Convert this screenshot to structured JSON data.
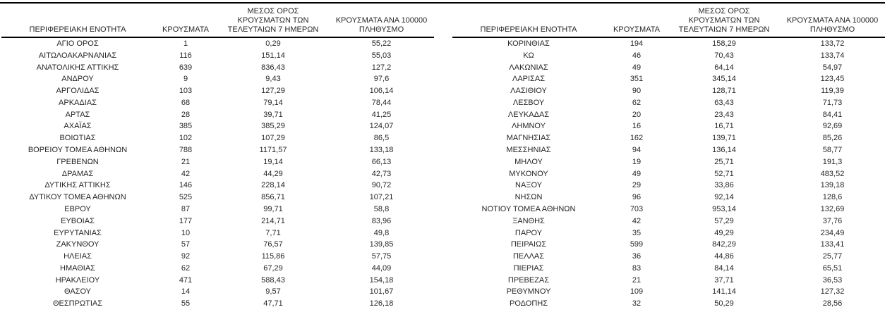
{
  "headers": {
    "region": "ΠΕΡΙΦΕΡΕΙΑΚΗ ΕΝΟΤΗΤΑ",
    "cases": "ΚΡΟΥΣΜΑΤΑ",
    "avg7": "ΜΕΣΟΣ ΟΡΟΣ\nΚΡΟΥΣΜΑΤΩΝ ΤΩΝ\nΤΕΛΕΥΤΑΙΩΝ 7 ΗΜΕΡΩΝ",
    "per100k": "ΚΡΟΥΣΜΑΤΑ ΑΝΑ 100000\nΠΛΗΘΥΣΜΟ"
  },
  "colors": {
    "text": "#262626",
    "border": "#000000",
    "background": "#ffffff"
  },
  "tables": {
    "left": {
      "rows": [
        [
          "ΑΓΙΟ ΟΡΟΣ",
          "1",
          "0,29",
          "55,22"
        ],
        [
          "ΑΙΤΩΛΟΑΚΑΡΝΑΝΙΑΣ",
          "116",
          "151,14",
          "55,03"
        ],
        [
          "ΑΝΑΤΟΛΙΚΗΣ ΑΤΤΙΚΗΣ",
          "639",
          "836,43",
          "127,2"
        ],
        [
          "ΑΝΔΡΟΥ",
          "9",
          "9,43",
          "97,6"
        ],
        [
          "ΑΡΓΟΛΙΔΑΣ",
          "103",
          "127,29",
          "106,14"
        ],
        [
          "ΑΡΚΑΔΙΑΣ",
          "68",
          "79,14",
          "78,44"
        ],
        [
          "ΑΡΤΑΣ",
          "28",
          "39,71",
          "41,25"
        ],
        [
          "ΑΧΑΪΑΣ",
          "385",
          "385,29",
          "124,07"
        ],
        [
          "ΒΟΙΩΤΙΑΣ",
          "102",
          "107,29",
          "86,5"
        ],
        [
          "ΒΟΡΕΙΟΥ ΤΟΜΕΑ ΑΘΗΝΩΝ",
          "788",
          "1171,57",
          "133,18"
        ],
        [
          "ΓΡΕΒΕΝΩΝ",
          "21",
          "19,14",
          "66,13"
        ],
        [
          "ΔΡΑΜΑΣ",
          "42",
          "44,29",
          "42,73"
        ],
        [
          "ΔΥΤΙΚΗΣ ΑΤΤΙΚΗΣ",
          "146",
          "228,14",
          "90,72"
        ],
        [
          "ΔΥΤΙΚΟΥ ΤΟΜΕΑ ΑΘΗΝΩΝ",
          "525",
          "856,71",
          "107,21"
        ],
        [
          "ΕΒΡΟΥ",
          "87",
          "99,71",
          "58,8"
        ],
        [
          "ΕΥΒΟΙΑΣ",
          "177",
          "214,71",
          "83,96"
        ],
        [
          "ΕΥΡΥΤΑΝΙΑΣ",
          "10",
          "7,71",
          "49,8"
        ],
        [
          "ΖΑΚΥΝΘΟΥ",
          "57",
          "76,57",
          "139,85"
        ],
        [
          "ΗΛΕΙΑΣ",
          "92",
          "115,86",
          "57,75"
        ],
        [
          "ΗΜΑΘΙΑΣ",
          "62",
          "67,29",
          "44,09"
        ],
        [
          "ΗΡΑΚΛΕΙΟΥ",
          "471",
          "588,43",
          "154,18"
        ],
        [
          "ΘΑΣΟΥ",
          "14",
          "9,57",
          "101,67"
        ],
        [
          "ΘΕΣΠΡΩΤΙΑΣ",
          "55",
          "47,71",
          "126,18"
        ]
      ]
    },
    "right": {
      "rows": [
        [
          "ΚΟΡΙΝΘΙΑΣ",
          "194",
          "158,29",
          "133,72"
        ],
        [
          "ΚΩ",
          "46",
          "70,43",
          "133,74"
        ],
        [
          "ΛΑΚΩΝΙΑΣ",
          "49",
          "64,14",
          "54,97"
        ],
        [
          "ΛΑΡΙΣΑΣ",
          "351",
          "345,14",
          "123,45"
        ],
        [
          "ΛΑΣΙΘΙΟΥ",
          "90",
          "128,71",
          "119,39"
        ],
        [
          "ΛΕΣΒΟΥ",
          "62",
          "63,43",
          "71,73"
        ],
        [
          "ΛΕΥΚΑΔΑΣ",
          "20",
          "23,43",
          "84,41"
        ],
        [
          "ΛΗΜΝΟΥ",
          "16",
          "16,71",
          "92,69"
        ],
        [
          "ΜΑΓΝΗΣΙΑΣ",
          "162",
          "139,71",
          "85,26"
        ],
        [
          "ΜΕΣΣΗΝΙΑΣ",
          "94",
          "136,14",
          "58,77"
        ],
        [
          "ΜΗΛΟΥ",
          "19",
          "25,71",
          "191,3"
        ],
        [
          "ΜΥΚΟΝΟΥ",
          "49",
          "52,71",
          "483,52"
        ],
        [
          "ΝΑΞΟΥ",
          "29",
          "33,86",
          "139,18"
        ],
        [
          "ΝΗΣΩΝ",
          "96",
          "92,14",
          "128,6"
        ],
        [
          "ΝΟΤΙΟΥ ΤΟΜΕΑ ΑΘΗΝΩΝ",
          "703",
          "953,14",
          "132,69"
        ],
        [
          "ΞΑΝΘΗΣ",
          "42",
          "57,29",
          "37,76"
        ],
        [
          "ΠΑΡΟΥ",
          "35",
          "49,29",
          "234,49"
        ],
        [
          "ΠΕΙΡΑΙΩΣ",
          "599",
          "842,29",
          "133,41"
        ],
        [
          "ΠΕΛΛΑΣ",
          "36",
          "44,86",
          "25,77"
        ],
        [
          "ΠΙΕΡΙΑΣ",
          "83",
          "84,14",
          "65,51"
        ],
        [
          "ΠΡΕΒΕΖΑΣ",
          "21",
          "37,71",
          "36,53"
        ],
        [
          "ΡΕΘΥΜΝΟΥ",
          "109",
          "141,14",
          "127,32"
        ],
        [
          "ΡΟΔΟΠΗΣ",
          "32",
          "50,29",
          "28,56"
        ]
      ]
    }
  }
}
